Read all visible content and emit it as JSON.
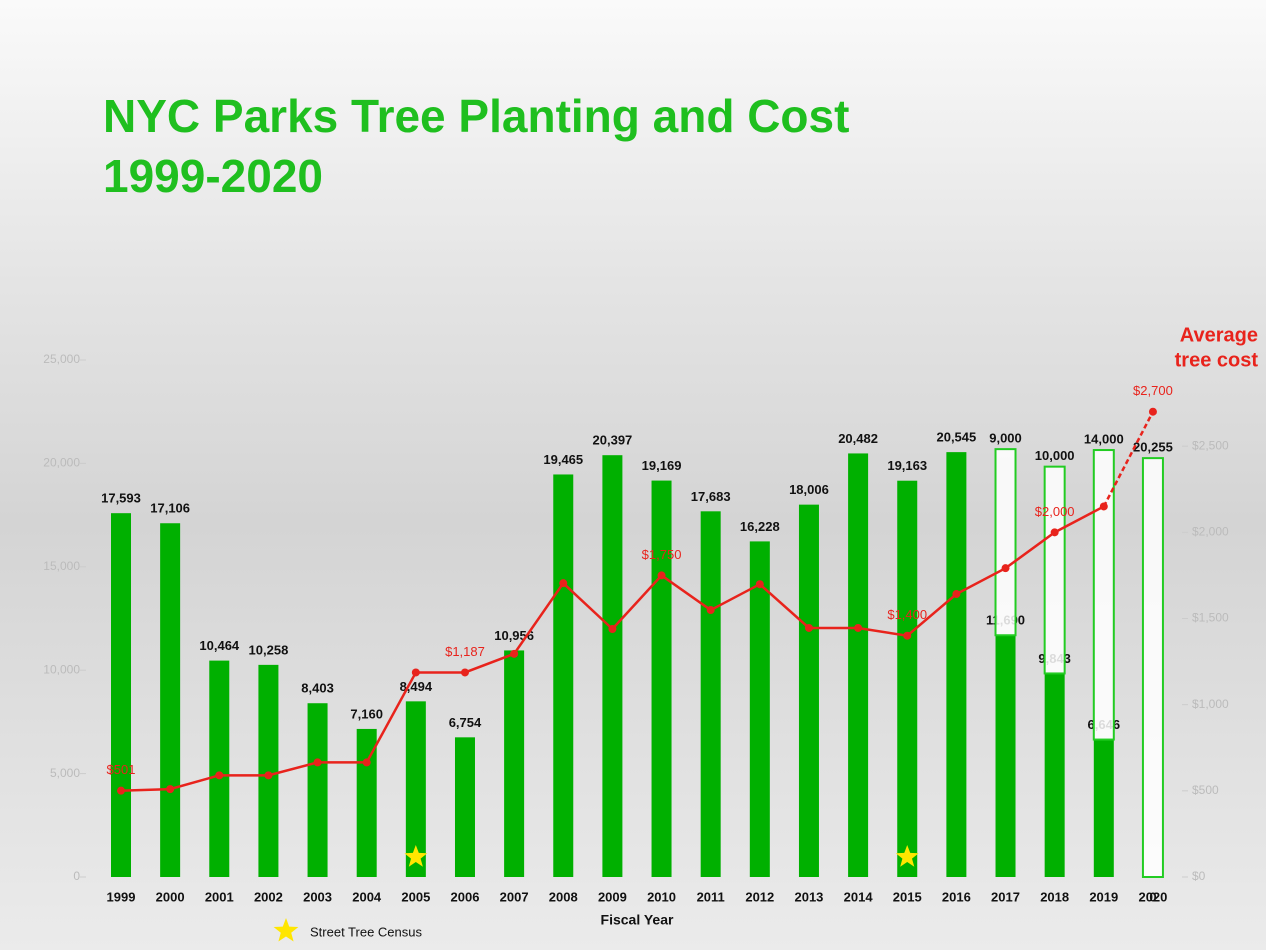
{
  "chart_data": {
    "type": "bar",
    "title": [
      "NYC Parks Tree Planting and Cost",
      "1999-2020"
    ],
    "x_label": "Fiscal Year",
    "annotation": [
      "Average",
      "tree cost"
    ],
    "categories": [
      "1999",
      "2000",
      "2001",
      "2002",
      "2003",
      "2004",
      "2005",
      "2006",
      "2007",
      "2008",
      "2009",
      "2010",
      "2011",
      "2012",
      "2013",
      "2014",
      "2015",
      "2016",
      "2017",
      "2018",
      "2019",
      "2020"
    ],
    "series": [
      {
        "type": "bar",
        "color": "#00b000",
        "values": [
          17593,
          17106,
          10464,
          10258,
          8403,
          7160,
          8494,
          6754,
          10956,
          19465,
          20397,
          19169,
          17683,
          16228,
          18006,
          20482,
          19163,
          20545,
          11690,
          9843,
          6646,
          0
        ],
        "value_labels": [
          "17,593",
          "17,106",
          "10,464",
          "10,258",
          "8,403",
          "7,160",
          "8,494",
          "6,754",
          "10,956",
          "19,465",
          "20,397",
          "19,169",
          "17,683",
          "16,228",
          "18,006",
          "20,482",
          "19,163",
          "20,545",
          "11,690",
          "9,843",
          "6,646",
          "0"
        ]
      },
      {
        "type": "bar-outline",
        "color": "#22cc22",
        "values": [
          null,
          null,
          null,
          null,
          null,
          null,
          null,
          null,
          null,
          null,
          null,
          null,
          null,
          null,
          null,
          null,
          null,
          null,
          9000,
          10000,
          14000,
          20255
        ],
        "value_labels": [
          null,
          null,
          null,
          null,
          null,
          null,
          null,
          null,
          null,
          null,
          null,
          null,
          null,
          null,
          null,
          null,
          null,
          null,
          "9,000",
          "10,000",
          "14,000",
          "20,255"
        ]
      },
      {
        "type": "line",
        "axis": "y2",
        "color": "#e8231c",
        "dashed_last_segment": true,
        "values": [
          501,
          510,
          590,
          590,
          665,
          665,
          1187,
          1187,
          1295,
          1705,
          1439,
          1750,
          1549,
          1699,
          1445,
          1445,
          1400,
          1642,
          1792,
          2000,
          2150,
          2700
        ],
        "value_labels": [
          "$501",
          null,
          null,
          null,
          null,
          null,
          null,
          "$1,187",
          null,
          null,
          null,
          "$1,750",
          null,
          null,
          null,
          null,
          "$1,400",
          null,
          null,
          "$2,000",
          null,
          "$2,700"
        ]
      }
    ],
    "ylim": [
      0,
      25000
    ],
    "yticks": [
      0,
      {
        "value": 5000,
        "label": "5,000"
      },
      {
        "value": 10000,
        "label": "10,000"
      },
      {
        "value": 15000,
        "label": "15,000"
      },
      {
        "value": 20000,
        "label": "20,000"
      },
      {
        "value": 25000,
        "label": "25,000"
      }
    ],
    "y2lim": [
      0,
      3000
    ],
    "y2ticks": [
      {
        "value": 0,
        "label": "$0"
      },
      {
        "value": 500,
        "label": "$500"
      },
      {
        "value": 1000,
        "label": "$1,000"
      },
      {
        "value": 1500,
        "label": "$1,500"
      },
      {
        "value": 2000,
        "label": "$2,000"
      },
      {
        "value": 2500,
        "label": "$2,500"
      }
    ],
    "census": {
      "label": "Street Tree Census",
      "categories": [
        "2005",
        "2015"
      ],
      "color": "#ffe600"
    }
  }
}
